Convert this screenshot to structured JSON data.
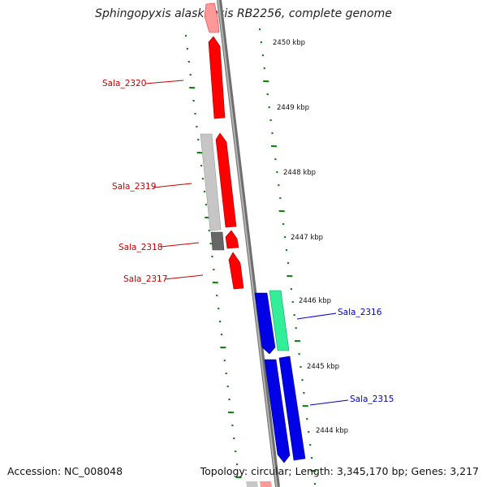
{
  "title": "Sphingopyxis alaskensis RB2256, complete genome",
  "footer": {
    "accession": "Accession: NC_008048",
    "topology": "Topology: circular; Length: 3,345,170 bp; Genes: 3,217"
  },
  "colors": {
    "forward_gene": "#ff0000",
    "forward_gene_light": "#ff9999",
    "reverse_gene": "#0000e6",
    "reverse_gene_alt": "#33ee99",
    "pseudo_light": "#c0c0c0",
    "pseudo_dark": "#666666",
    "backbone": "#888888",
    "tick": "#0a7a0a",
    "label_forward": "#cc0000",
    "label_reverse": "#0000cc"
  },
  "kbp_ticks": [
    "2450 kbp",
    "2449 kbp",
    "2448 kbp",
    "2447 kbp",
    "2446 kbp",
    "2445 kbp",
    "2444 kbp"
  ],
  "gene_labels": {
    "forward": [
      "Sala_2320",
      "Sala_2319",
      "Sala_2318",
      "Sala_2317"
    ],
    "reverse": [
      "Sala_2316",
      "Sala_2315"
    ]
  }
}
